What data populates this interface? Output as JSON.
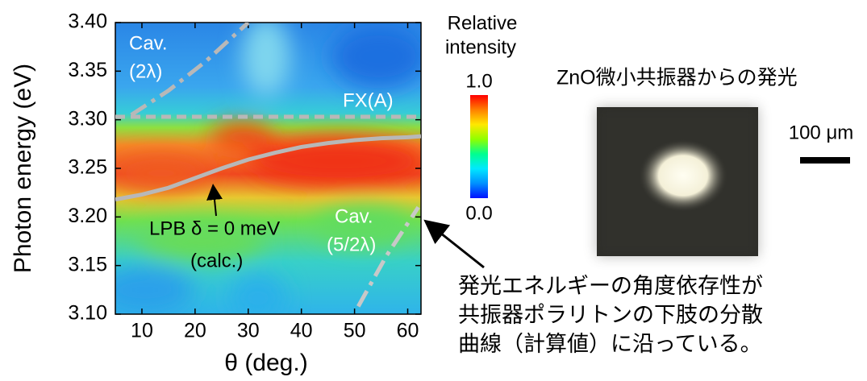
{
  "chart_data": {
    "type": "line",
    "x_label": "θ (deg.)",
    "y_label": "Photon energy (eV)",
    "xlim": [
      5,
      62.5
    ],
    "ylim": [
      3.1,
      3.4
    ],
    "xticks": [
      10,
      20,
      30,
      40,
      50,
      60
    ],
    "yticks": [
      {
        "value": 3.1,
        "label": "3.10"
      },
      {
        "value": 3.15,
        "label": "3.15"
      },
      {
        "value": 3.2,
        "label": "3.20"
      },
      {
        "value": 3.25,
        "label": "3.25"
      },
      {
        "value": 3.3,
        "label": "3.30"
      },
      {
        "value": 3.35,
        "label": "3.35"
      },
      {
        "value": 3.4,
        "label": "3.40"
      }
    ],
    "series": [
      {
        "color": "#b8b8b8",
        "dash": "solid",
        "x": [
          5,
          10,
          15,
          20,
          25,
          30,
          35,
          40,
          45,
          50,
          55,
          60,
          62.5
        ],
        "values": [
          3.218,
          3.223,
          3.23,
          3.24,
          3.25,
          3.259,
          3.266,
          3.272,
          3.276,
          3.279,
          3.281,
          3.282,
          3.283
        ]
      },
      {
        "color": "#b8b8b8",
        "dash": "dashed",
        "x": [
          5,
          62.5
        ],
        "values": [
          3.303,
          3.303
        ]
      },
      {
        "color": "#b8b8b8",
        "dash": "dashdot",
        "x": [
          8,
          15,
          22,
          30
        ],
        "values": [
          3.305,
          3.33,
          3.36,
          3.4
        ]
      },
      {
        "color": "#c8c8c8",
        "dash": "dashdot",
        "x": [
          50.7,
          56,
          62
        ],
        "values": [
          3.108,
          3.16,
          3.21
        ]
      }
    ],
    "annotations": [
      "Cav.",
      "(2λ)",
      "FX(A)",
      "LPB δ = 0 meV",
      "(calc.)",
      "Cav.",
      "(5/2λ)"
    ],
    "colorbar": {
      "label": [
        "Relative",
        "intensity"
      ],
      "colors": [
        "#0010ff",
        "#0090ff",
        "#00e8ff",
        "#00ff90",
        "#90ff00",
        "#ffe800",
        "#ff8000",
        "#ff0000"
      ],
      "ticks": [
        {
          "value": 1,
          "label": "1.0"
        },
        {
          "value": 0,
          "label": "0.0"
        }
      ]
    }
  },
  "photo": {
    "title": "ZnO微小共振器からの発光",
    "scale_bar": "100 μm"
  },
  "caption": [
    "発光エネルギーの角度依存性が",
    "共振器ポラリトンの下肢の分散",
    "曲線（計算値）に沿っている。"
  ]
}
